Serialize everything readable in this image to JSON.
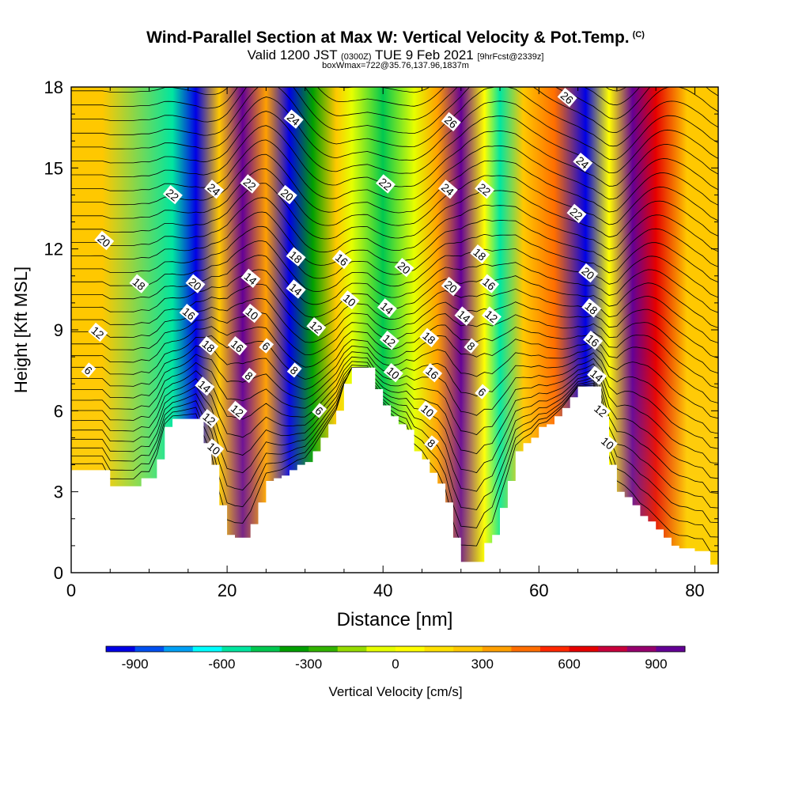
{
  "title": {
    "main": "Wind-Parallel Section at Max W: Vertical Velocity & Pot.Temp.",
    "copyright_mark": "(C)",
    "valid_prefix": "Valid 1200 JST",
    "valid_utc": "(0300Z)",
    "valid_date": "TUE 9 Feb 2021",
    "forecast_info": "[9hrFcst@2339z]",
    "box_info": "boxWmax=722@35.76,137.96,1837m"
  },
  "colorbar": {
    "label": "Vertical Velocity [cm/s]",
    "tick_labels": [
      "-900",
      "-600",
      "-300",
      "0",
      "300",
      "600",
      "900"
    ],
    "colors": [
      "#0000e6",
      "#0050f0",
      "#00a0f5",
      "#00ffff",
      "#00e6a0",
      "#00c850",
      "#00a000",
      "#32b400",
      "#96dc00",
      "#e6ff00",
      "#ffff00",
      "#ffe100",
      "#ffc800",
      "#ffa000",
      "#ff6e00",
      "#ff2800",
      "#e60000",
      "#c8003c",
      "#96006e",
      "#640096"
    ]
  },
  "chart_data": {
    "type": "heatmap",
    "title": "Wind-Parallel Section at Max W: Vertical Velocity & Pot.Temp.",
    "xlabel": "Distance [nm]",
    "ylabel": "Height [Kft MSL]",
    "xlim": [
      0,
      83
    ],
    "ylim": [
      0,
      18
    ],
    "x_ticks": [
      "0",
      "20",
      "40",
      "60",
      "80"
    ],
    "y_ticks": [
      "0",
      "3",
      "6",
      "9",
      "12",
      "15",
      "18"
    ],
    "field": "Vertical Velocity [cm/s]",
    "color_range": [
      -1000,
      1000
    ],
    "bands": [
      {
        "x": 4,
        "w": 0.2
      },
      {
        "x": 13,
        "w": -0.55
      },
      {
        "x": 16,
        "w": -1.0
      },
      {
        "x": 19,
        "w": 0.2
      },
      {
        "x": 22,
        "w": 1.7
      },
      {
        "x": 25,
        "w": 0.3
      },
      {
        "x": 28,
        "w": -1.0
      },
      {
        "x": 31,
        "w": -0.35
      },
      {
        "x": 34,
        "w": 0.25
      },
      {
        "x": 36,
        "w": -0.1
      },
      {
        "x": 40,
        "w": -0.45
      },
      {
        "x": 44,
        "w": -0.1
      },
      {
        "x": 47,
        "w": 0.3
      },
      {
        "x": 50,
        "w": 1.6
      },
      {
        "x": 53,
        "w": 0.05
      },
      {
        "x": 55,
        "w": -0.55
      },
      {
        "x": 58,
        "w": 0.25
      },
      {
        "x": 62,
        "w": 0.4
      },
      {
        "x": 66,
        "w": -1.05
      },
      {
        "x": 69,
        "w": 0.0
      },
      {
        "x": 72,
        "w": 1.4
      },
      {
        "x": 75,
        "w": 0.6
      },
      {
        "x": 79,
        "w": 0.2
      }
    ],
    "terrain": [
      [
        0,
        3.8
      ],
      [
        4,
        3.8
      ],
      [
        5,
        3.2
      ],
      [
        8,
        3.2
      ],
      [
        9,
        3.5
      ],
      [
        10,
        3.5
      ],
      [
        11,
        4.2
      ],
      [
        12,
        5.4
      ],
      [
        13,
        5.7
      ],
      [
        16,
        5.7
      ],
      [
        17,
        4.8
      ],
      [
        18,
        4.0
      ],
      [
        19,
        2.5
      ],
      [
        20,
        1.4
      ],
      [
        21,
        1.3
      ],
      [
        22,
        1.3
      ],
      [
        23,
        1.8
      ],
      [
        24,
        2.6
      ],
      [
        25,
        3.4
      ],
      [
        26,
        3.5
      ],
      [
        27,
        3.6
      ],
      [
        28,
        3.8
      ],
      [
        29,
        4.0
      ],
      [
        30,
        4.1
      ],
      [
        31,
        4.5
      ],
      [
        32,
        5.0
      ],
      [
        33,
        5.5
      ],
      [
        34,
        6.0
      ],
      [
        35,
        7.0
      ],
      [
        36,
        7.6
      ],
      [
        38,
        7.6
      ],
      [
        39,
        6.8
      ],
      [
        40,
        6.2
      ],
      [
        41,
        5.8
      ],
      [
        42,
        5.5
      ],
      [
        43,
        5.3
      ],
      [
        44,
        4.5
      ],
      [
        45,
        4.2
      ],
      [
        46,
        3.7
      ],
      [
        47,
        3.3
      ],
      [
        48,
        2.6
      ],
      [
        49,
        1.3
      ],
      [
        50,
        0.4
      ],
      [
        52,
        0.4
      ],
      [
        53,
        1.1
      ],
      [
        54,
        1.4
      ],
      [
        55,
        2.4
      ],
      [
        56,
        3.4
      ],
      [
        57,
        4.5
      ],
      [
        58,
        4.8
      ],
      [
        59,
        5.0
      ],
      [
        60,
        5.4
      ],
      [
        61,
        5.5
      ],
      [
        62,
        5.8
      ],
      [
        63,
        6.1
      ],
      [
        64,
        6.5
      ],
      [
        65,
        6.9
      ],
      [
        67,
        6.9
      ],
      [
        68,
        5.8
      ],
      [
        69,
        4.0
      ],
      [
        70,
        3.0
      ],
      [
        71,
        2.8
      ],
      [
        72,
        2.5
      ],
      [
        73,
        2.1
      ],
      [
        74,
        1.9
      ],
      [
        75,
        1.6
      ],
      [
        76,
        1.3
      ],
      [
        77,
        1.0
      ],
      [
        78,
        0.9
      ],
      [
        79,
        0.9
      ],
      [
        80,
        0.8
      ],
      [
        81,
        0.8
      ],
      [
        82,
        0.3
      ],
      [
        83,
        0.3
      ]
    ],
    "contour_labels": [
      {
        "x": 2.2,
        "y": 7.5,
        "text": "6"
      },
      {
        "x": 3.4,
        "y": 8.9,
        "text": "12"
      },
      {
        "x": 4.2,
        "y": 12.3,
        "text": "20"
      },
      {
        "x": 8.7,
        "y": 10.7,
        "text": "18"
      },
      {
        "x": 13.0,
        "y": 14.0,
        "text": "22"
      },
      {
        "x": 15.9,
        "y": 10.7,
        "text": "20"
      },
      {
        "x": 15.1,
        "y": 9.6,
        "text": "16"
      },
      {
        "x": 17.6,
        "y": 8.4,
        "text": "18"
      },
      {
        "x": 17.1,
        "y": 6.9,
        "text": "14"
      },
      {
        "x": 17.7,
        "y": 5.7,
        "text": "12"
      },
      {
        "x": 18.3,
        "y": 4.6,
        "text": "10"
      },
      {
        "x": 18.3,
        "y": 14.2,
        "text": "24"
      },
      {
        "x": 22.9,
        "y": 14.4,
        "text": "22"
      },
      {
        "x": 23.0,
        "y": 10.9,
        "text": "14"
      },
      {
        "x": 23.2,
        "y": 9.6,
        "text": "10"
      },
      {
        "x": 21.3,
        "y": 8.4,
        "text": "16"
      },
      {
        "x": 22.8,
        "y": 7.3,
        "text": "8"
      },
      {
        "x": 21.3,
        "y": 6.0,
        "text": "12"
      },
      {
        "x": 25.0,
        "y": 8.4,
        "text": "6"
      },
      {
        "x": 28.5,
        "y": 16.8,
        "text": "24"
      },
      {
        "x": 27.7,
        "y": 14.0,
        "text": "20"
      },
      {
        "x": 28.8,
        "y": 11.7,
        "text": "18"
      },
      {
        "x": 28.8,
        "y": 10.5,
        "text": "14"
      },
      {
        "x": 31.4,
        "y": 9.1,
        "text": "12"
      },
      {
        "x": 28.6,
        "y": 7.5,
        "text": "8"
      },
      {
        "x": 31.8,
        "y": 6.0,
        "text": "6"
      },
      {
        "x": 34.7,
        "y": 11.6,
        "text": "16"
      },
      {
        "x": 35.7,
        "y": 10.1,
        "text": "10"
      },
      {
        "x": 40.3,
        "y": 14.4,
        "text": "22"
      },
      {
        "x": 42.7,
        "y": 11.3,
        "text": "20"
      },
      {
        "x": 40.5,
        "y": 9.8,
        "text": "14"
      },
      {
        "x": 40.8,
        "y": 8.6,
        "text": "12"
      },
      {
        "x": 41.3,
        "y": 7.4,
        "text": "10"
      },
      {
        "x": 45.9,
        "y": 8.7,
        "text": "18"
      },
      {
        "x": 46.3,
        "y": 7.4,
        "text": "16"
      },
      {
        "x": 45.7,
        "y": 6.0,
        "text": "10"
      },
      {
        "x": 46.2,
        "y": 4.8,
        "text": "8"
      },
      {
        "x": 48.7,
        "y": 16.7,
        "text": "26"
      },
      {
        "x": 48.3,
        "y": 14.2,
        "text": "24"
      },
      {
        "x": 53.0,
        "y": 14.2,
        "text": "22"
      },
      {
        "x": 48.7,
        "y": 10.6,
        "text": "20"
      },
      {
        "x": 50.4,
        "y": 9.5,
        "text": "14"
      },
      {
        "x": 51.3,
        "y": 8.4,
        "text": "8"
      },
      {
        "x": 52.4,
        "y": 11.8,
        "text": "18"
      },
      {
        "x": 53.6,
        "y": 10.7,
        "text": "16"
      },
      {
        "x": 53.9,
        "y": 9.5,
        "text": "12"
      },
      {
        "x": 52.7,
        "y": 6.7,
        "text": "6"
      },
      {
        "x": 63.6,
        "y": 17.6,
        "text": "26"
      },
      {
        "x": 65.6,
        "y": 15.2,
        "text": "24"
      },
      {
        "x": 64.8,
        "y": 13.3,
        "text": "22"
      },
      {
        "x": 66.3,
        "y": 11.1,
        "text": "20"
      },
      {
        "x": 66.7,
        "y": 9.8,
        "text": "18"
      },
      {
        "x": 66.9,
        "y": 8.6,
        "text": "16"
      },
      {
        "x": 67.4,
        "y": 7.3,
        "text": "14"
      },
      {
        "x": 67.9,
        "y": 6.0,
        "text": "12"
      },
      {
        "x": 68.8,
        "y": 4.8,
        "text": "10"
      }
    ]
  }
}
